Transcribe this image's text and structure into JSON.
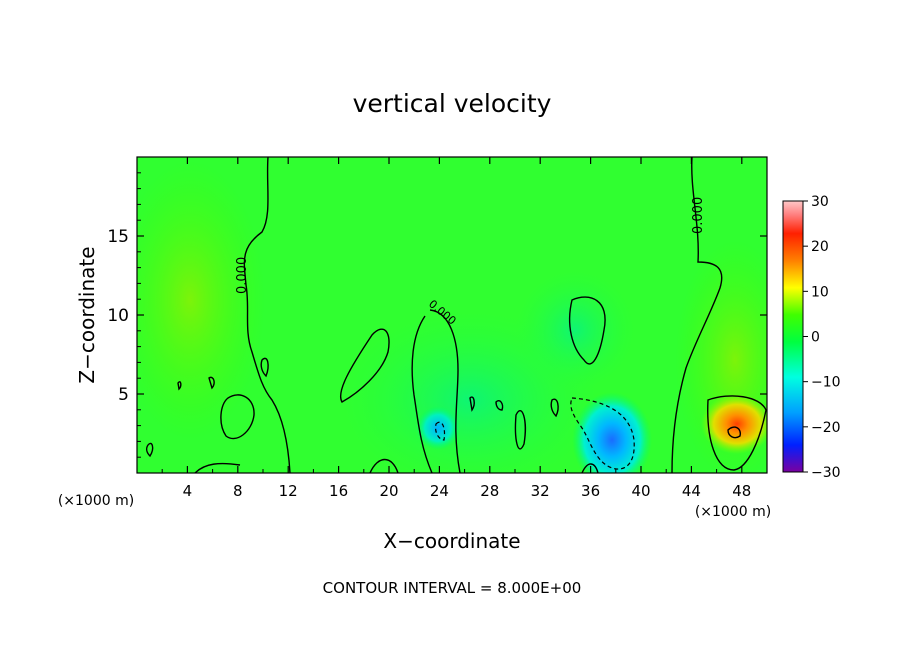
{
  "chart_data": {
    "type": "heatmap",
    "title": "vertical velocity",
    "xlabel": "X−coordinate",
    "ylabel": "Z−coordinate",
    "x_unit_left": "(×1000 m)",
    "x_unit_right": "(×1000 m)",
    "xlim": [
      0,
      50
    ],
    "ylim": [
      0,
      20
    ],
    "x_ticks": [
      4,
      8,
      12,
      16,
      20,
      24,
      28,
      32,
      36,
      40,
      44,
      48
    ],
    "y_ticks": [
      5,
      10,
      15
    ],
    "colorbar": {
      "range": [
        -30,
        30
      ],
      "ticks": [
        30,
        20,
        10,
        0,
        -10,
        -20,
        -30
      ],
      "tick_labels": [
        "30",
        "20",
        "10",
        "0",
        "−10",
        "−20",
        "−30"
      ],
      "colormap": [
        "#7a00a0",
        "#0020ff",
        "#00a0ff",
        "#00ffe0",
        "#00ff40",
        "#40ff00",
        "#ffff00",
        "#ff8000",
        "#ff2000",
        "#ff8080",
        "#ffc8c8"
      ]
    },
    "contour_label": "0.000",
    "features": [
      {
        "kind": "updraft",
        "x": 47.8,
        "z": 2.8,
        "max_w": 22
      },
      {
        "kind": "downdraft",
        "x": 38.0,
        "z": 1.8,
        "min_w": -15
      },
      {
        "kind": "downdraft",
        "x": 24.0,
        "z": 2.5,
        "min_w": -8
      }
    ],
    "annotation": "CONTOUR INTERVAL = 8.000E+00"
  }
}
